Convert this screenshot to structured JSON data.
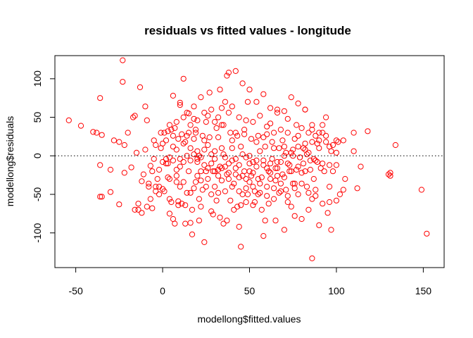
{
  "chart_data": {
    "type": "scatter",
    "title": "residuals vs fitted values - longitude",
    "xlabel": "modellong$fitted.values",
    "ylabel": "modellong$residuals",
    "xlim": [
      -62,
      162
    ],
    "ylim": [
      -145,
      130
    ],
    "xticks": [
      -50,
      0,
      50,
      100,
      150
    ],
    "yticks": [
      -100,
      -50,
      0,
      50,
      100
    ],
    "reference_line": {
      "y": 0,
      "style": "dotted"
    },
    "marker": {
      "shape": "open-circle",
      "color": "#ff0000"
    },
    "grid": false,
    "legend": "none",
    "points": [
      [
        -54,
        46
      ],
      [
        -47,
        39
      ],
      [
        -40,
        31
      ],
      [
        -38,
        30
      ],
      [
        -35,
        27
      ],
      [
        -36,
        75
      ],
      [
        -35,
        -53
      ],
      [
        -36,
        -53
      ],
      [
        -36,
        -12
      ],
      [
        -30,
        -47
      ],
      [
        -30,
        -18
      ],
      [
        -28,
        20
      ],
      [
        -25,
        18
      ],
      [
        -25,
        -63
      ],
      [
        -23,
        124
      ],
      [
        -23,
        96
      ],
      [
        -22,
        14
      ],
      [
        -22,
        -22
      ],
      [
        -20,
        30
      ],
      [
        -18,
        -15
      ],
      [
        -17,
        50
      ],
      [
        -16,
        52
      ],
      [
        -16,
        -70
      ],
      [
        -15,
        4
      ],
      [
        -14,
        -62
      ],
      [
        -14,
        -70
      ],
      [
        -13,
        89
      ],
      [
        -12,
        -74
      ],
      [
        -12,
        -33
      ],
      [
        -11,
        -24
      ],
      [
        -10,
        64
      ],
      [
        -10,
        8
      ],
      [
        -9,
        46
      ],
      [
        -9,
        -66
      ],
      [
        -8,
        -36
      ],
      [
        -7,
        -13
      ],
      [
        -7,
        -56
      ],
      [
        -6,
        -68
      ],
      [
        -5,
        20
      ],
      [
        -5,
        -4
      ],
      [
        -4,
        14
      ],
      [
        -4,
        -40
      ],
      [
        -3,
        -30
      ],
      [
        -2,
        -40
      ],
      [
        -2,
        -18
      ],
      [
        -1,
        10
      ],
      [
        0,
        -8
      ],
      [
        0,
        -43
      ],
      [
        1,
        30
      ],
      [
        1,
        -46
      ],
      [
        2,
        -4
      ],
      [
        3,
        -28
      ],
      [
        3,
        -10
      ],
      [
        4,
        -75
      ],
      [
        4,
        -56
      ],
      [
        5,
        34
      ],
      [
        6,
        12
      ],
      [
        6,
        -82
      ],
      [
        7,
        -88
      ],
      [
        8,
        8
      ],
      [
        8,
        -18
      ],
      [
        9,
        -59
      ],
      [
        9,
        22
      ],
      [
        10,
        -40
      ],
      [
        10,
        69
      ],
      [
        11,
        -62
      ],
      [
        12,
        100
      ],
      [
        12,
        -8
      ],
      [
        13,
        18
      ],
      [
        13,
        -64
      ],
      [
        14,
        -48
      ],
      [
        15,
        55
      ],
      [
        15,
        -20
      ],
      [
        16,
        10
      ],
      [
        16,
        -87
      ],
      [
        17,
        -102
      ],
      [
        18,
        64
      ],
      [
        18,
        -42
      ],
      [
        19,
        30
      ],
      [
        19,
        -34
      ],
      [
        20,
        -4
      ],
      [
        20,
        -26
      ],
      [
        21,
        0
      ],
      [
        21,
        -56
      ],
      [
        22,
        -20
      ],
      [
        22,
        -66
      ],
      [
        23,
        -44
      ],
      [
        24,
        -112
      ],
      [
        24,
        8
      ],
      [
        25,
        44
      ],
      [
        25,
        -20
      ],
      [
        26,
        -30
      ],
      [
        27,
        82
      ],
      [
        28,
        -10
      ],
      [
        28,
        -72
      ],
      [
        29,
        -76
      ],
      [
        30,
        -4
      ],
      [
        30,
        -40
      ],
      [
        31,
        -58
      ],
      [
        32,
        24
      ],
      [
        32,
        -26
      ],
      [
        33,
        86
      ],
      [
        33,
        -14
      ],
      [
        34,
        40
      ],
      [
        34,
        -32
      ],
      [
        35,
        2
      ],
      [
        35,
        -88
      ],
      [
        36,
        -46
      ],
      [
        37,
        104
      ],
      [
        37,
        -24
      ],
      [
        38,
        -10
      ],
      [
        38,
        56
      ],
      [
        39,
        -58
      ],
      [
        40,
        -6
      ],
      [
        40,
        20
      ],
      [
        41,
        -36
      ],
      [
        42,
        -4
      ],
      [
        42,
        30
      ],
      [
        43,
        -66
      ],
      [
        44,
        -28
      ],
      [
        44,
        -92
      ],
      [
        45,
        12
      ],
      [
        45,
        -118
      ],
      [
        46,
        -50
      ],
      [
        47,
        34
      ],
      [
        47,
        -20
      ],
      [
        48,
        -2
      ],
      [
        48,
        -42
      ],
      [
        49,
        70
      ],
      [
        50,
        -10
      ],
      [
        50,
        0
      ],
      [
        51,
        -26
      ],
      [
        52,
        -40
      ],
      [
        52,
        -8
      ],
      [
        53,
        -60
      ],
      [
        54,
        18
      ],
      [
        55,
        -30
      ],
      [
        55,
        -50
      ],
      [
        56,
        6
      ],
      [
        57,
        -70
      ],
      [
        58,
        -12
      ],
      [
        58,
        -104
      ],
      [
        59,
        -84
      ],
      [
        60,
        28
      ],
      [
        60,
        -40
      ],
      [
        61,
        -62
      ],
      [
        62,
        42
      ],
      [
        62,
        -22
      ],
      [
        63,
        -4
      ],
      [
        64,
        10
      ],
      [
        65,
        -32
      ],
      [
        65,
        -84
      ],
      [
        66,
        60
      ],
      [
        66,
        -16
      ],
      [
        67,
        -48
      ],
      [
        68,
        -8
      ],
      [
        69,
        20
      ],
      [
        70,
        -28
      ],
      [
        70,
        -96
      ],
      [
        71,
        -44
      ],
      [
        72,
        30
      ],
      [
        72,
        -60
      ],
      [
        73,
        -20
      ],
      [
        74,
        -66
      ],
      [
        75,
        8
      ],
      [
        75,
        -36
      ],
      [
        76,
        -78
      ],
      [
        77,
        40
      ],
      [
        78,
        -14
      ],
      [
        78,
        -50
      ],
      [
        79,
        -2
      ],
      [
        80,
        -82
      ],
      [
        81,
        10
      ],
      [
        82,
        -20
      ],
      [
        82,
        60
      ],
      [
        83,
        -40
      ],
      [
        84,
        -70
      ],
      [
        85,
        -18
      ],
      [
        86,
        -133
      ],
      [
        86,
        40
      ],
      [
        87,
        -30
      ],
      [
        88,
        -52
      ],
      [
        89,
        16
      ],
      [
        90,
        -90
      ],
      [
        90,
        20
      ],
      [
        91,
        -16
      ],
      [
        92,
        40
      ],
      [
        93,
        -20
      ],
      [
        94,
        26
      ],
      [
        95,
        -74
      ],
      [
        96,
        -40
      ],
      [
        97,
        6
      ],
      [
        97,
        -96
      ],
      [
        98,
        -20
      ],
      [
        100,
        20
      ],
      [
        100,
        -58
      ],
      [
        101,
        18
      ],
      [
        102,
        -50
      ],
      [
        104,
        20
      ],
      [
        105,
        -30
      ],
      [
        110,
        6
      ],
      [
        110,
        30
      ],
      [
        112,
        -42
      ],
      [
        114,
        -14
      ],
      [
        118,
        32
      ],
      [
        130,
        -24
      ],
      [
        131,
        -26
      ],
      [
        131,
        -22
      ],
      [
        134,
        14
      ],
      [
        149,
        -44
      ],
      [
        152,
        -101
      ],
      [
        -8,
        -40
      ],
      [
        -6,
        -20
      ],
      [
        -4,
        -46
      ],
      [
        -2,
        -50
      ],
      [
        0,
        16
      ],
      [
        2,
        20
      ],
      [
        4,
        -30
      ],
      [
        6,
        26
      ],
      [
        8,
        -34
      ],
      [
        10,
        -14
      ],
      [
        12,
        16
      ],
      [
        14,
        26
      ],
      [
        16,
        -6
      ],
      [
        18,
        22
      ],
      [
        20,
        6
      ],
      [
        22,
        -32
      ],
      [
        24,
        20
      ],
      [
        26,
        14
      ],
      [
        28,
        2
      ],
      [
        30,
        6
      ],
      [
        32,
        -48
      ],
      [
        34,
        10
      ],
      [
        36,
        -2
      ],
      [
        38,
        -22
      ],
      [
        40,
        10
      ],
      [
        42,
        -16
      ],
      [
        44,
        -12
      ],
      [
        46,
        2
      ],
      [
        48,
        -30
      ],
      [
        50,
        -34
      ],
      [
        52,
        -22
      ],
      [
        54,
        -14
      ],
      [
        56,
        -36
      ],
      [
        58,
        24
      ],
      [
        60,
        -16
      ],
      [
        62,
        -30
      ],
      [
        64,
        -42
      ],
      [
        66,
        -26
      ],
      [
        68,
        -36
      ],
      [
        70,
        12
      ],
      [
        72,
        -10
      ],
      [
        74,
        -20
      ],
      [
        76,
        -36
      ],
      [
        78,
        26
      ],
      [
        80,
        -22
      ],
      [
        82,
        8
      ],
      [
        84,
        4
      ],
      [
        86,
        -56
      ],
      [
        88,
        -6
      ],
      [
        92,
        -10
      ],
      [
        96,
        -12
      ],
      [
        100,
        -12
      ],
      [
        104,
        -44
      ],
      [
        4,
        40
      ],
      [
        8,
        44
      ],
      [
        12,
        50
      ],
      [
        16,
        40
      ],
      [
        20,
        46
      ],
      [
        24,
        56
      ],
      [
        28,
        60
      ],
      [
        32,
        50
      ],
      [
        36,
        70
      ],
      [
        40,
        64
      ],
      [
        44,
        50
      ],
      [
        48,
        46
      ],
      [
        52,
        44
      ],
      [
        56,
        52
      ],
      [
        60,
        38
      ],
      [
        64,
        30
      ],
      [
        68,
        34
      ],
      [
        72,
        48
      ],
      [
        76,
        22
      ],
      [
        80,
        36
      ],
      [
        84,
        30
      ],
      [
        88,
        26
      ],
      [
        92,
        30
      ],
      [
        96,
        12
      ],
      [
        100,
        4
      ],
      [
        4,
        -2
      ],
      [
        8,
        -26
      ],
      [
        12,
        -34
      ],
      [
        16,
        -48
      ],
      [
        20,
        -8
      ],
      [
        24,
        -12
      ],
      [
        28,
        -50
      ],
      [
        32,
        -18
      ],
      [
        36,
        -14
      ],
      [
        40,
        -40
      ],
      [
        44,
        -46
      ],
      [
        48,
        -60
      ],
      [
        52,
        -64
      ],
      [
        56,
        -48
      ],
      [
        60,
        -52
      ],
      [
        64,
        -56
      ],
      [
        68,
        -46
      ],
      [
        72,
        -52
      ],
      [
        76,
        -42
      ],
      [
        80,
        -36
      ],
      [
        84,
        -48
      ],
      [
        88,
        -44
      ],
      [
        92,
        -62
      ],
      [
        96,
        -60
      ],
      [
        6,
        78
      ],
      [
        10,
        66
      ],
      [
        14,
        56
      ],
      [
        18,
        48
      ],
      [
        22,
        76
      ],
      [
        26,
        52
      ],
      [
        30,
        44
      ],
      [
        34,
        62
      ],
      [
        38,
        108
      ],
      [
        42,
        110
      ],
      [
        46,
        94
      ],
      [
        50,
        86
      ],
      [
        54,
        70
      ],
      [
        58,
        80
      ],
      [
        62,
        62
      ],
      [
        66,
        56
      ],
      [
        70,
        58
      ],
      [
        74,
        76
      ],
      [
        78,
        68
      ],
      [
        82,
        60
      ],
      [
        86,
        34
      ],
      [
        90,
        30
      ],
      [
        94,
        50
      ],
      [
        98,
        14
      ],
      [
        2,
        -10
      ],
      [
        6,
        -6
      ],
      [
        10,
        -4
      ],
      [
        14,
        0
      ],
      [
        18,
        2
      ],
      [
        22,
        -2
      ],
      [
        26,
        -16
      ],
      [
        30,
        -20
      ],
      [
        34,
        -16
      ],
      [
        38,
        -30
      ],
      [
        42,
        -24
      ],
      [
        46,
        -26
      ],
      [
        50,
        -20
      ],
      [
        54,
        -6
      ],
      [
        58,
        -6
      ],
      [
        62,
        -10
      ],
      [
        66,
        -8
      ],
      [
        70,
        0
      ],
      [
        74,
        4
      ],
      [
        78,
        12
      ],
      [
        82,
        16
      ],
      [
        86,
        18
      ],
      [
        90,
        10
      ],
      [
        94,
        18
      ],
      [
        5,
        -60
      ],
      [
        9,
        -64
      ],
      [
        13,
        -88
      ],
      [
        17,
        -70
      ],
      [
        21,
        -84
      ],
      [
        25,
        -40
      ],
      [
        29,
        -20
      ],
      [
        33,
        -80
      ],
      [
        37,
        -84
      ],
      [
        41,
        -70
      ],
      [
        45,
        -64
      ],
      [
        49,
        -50
      ],
      [
        53,
        -46
      ],
      [
        57,
        -28
      ],
      [
        61,
        -20
      ],
      [
        65,
        -16
      ],
      [
        69,
        -24
      ],
      [
        73,
        -12
      ],
      [
        77,
        -18
      ],
      [
        81,
        -10
      ],
      [
        85,
        -6
      ],
      [
        89,
        -8
      ],
      [
        -1,
        30
      ],
      [
        3,
        32
      ],
      [
        7,
        36
      ],
      [
        11,
        28
      ],
      [
        15,
        30
      ],
      [
        19,
        34
      ],
      [
        23,
        26
      ],
      [
        27,
        24
      ],
      [
        31,
        36
      ],
      [
        35,
        40
      ],
      [
        39,
        30
      ],
      [
        43,
        26
      ],
      [
        47,
        28
      ],
      [
        51,
        22
      ],
      [
        55,
        26
      ],
      [
        59,
        12
      ],
      [
        63,
        18
      ],
      [
        67,
        10
      ],
      [
        71,
        4
      ],
      [
        75,
        0
      ],
      [
        79,
        -2
      ],
      [
        83,
        2
      ],
      [
        87,
        -4
      ]
    ]
  }
}
